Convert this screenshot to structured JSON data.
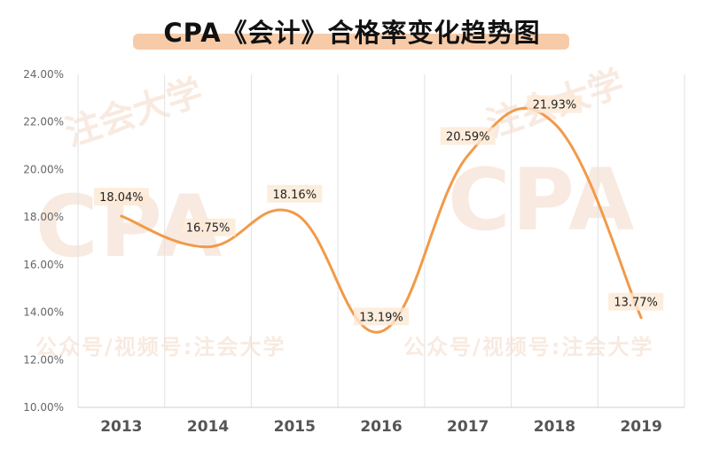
{
  "title": "CPA《会计》合格率变化趋势图",
  "watermark": {
    "left_text": "公众号/视频号:注会大学",
    "right_text": "公众号/视频号:注会大学",
    "logo_text": "CPA",
    "arc_text": "注会大学"
  },
  "colors": {
    "line": "#f29a48",
    "title_underline": "#f6b98b",
    "grid": "#e2e2e2",
    "label_bg": "#fde8d4"
  },
  "chart_data": {
    "type": "line",
    "title": "CPA《会计》合格率变化趋势图",
    "xlabel": "",
    "ylabel": "",
    "categories": [
      "2013",
      "2014",
      "2015",
      "2016",
      "2017",
      "2018",
      "2019"
    ],
    "series": [
      {
        "values": [
          18.04,
          16.75,
          18.16,
          13.19,
          20.59,
          21.93,
          13.77
        ]
      }
    ],
    "data_labels": [
      "18.04%",
      "16.75%",
      "18.16%",
      "13.19%",
      "20.59%",
      "21.93%",
      "13.77%"
    ],
    "ylim": [
      10,
      24
    ],
    "yticks": [
      "10.00%",
      "12.00%",
      "14.00%",
      "16.00%",
      "18.00%",
      "20.00%",
      "22.00%",
      "24.00%"
    ],
    "smooth": true,
    "grid": "vertical",
    "legend": "none"
  }
}
